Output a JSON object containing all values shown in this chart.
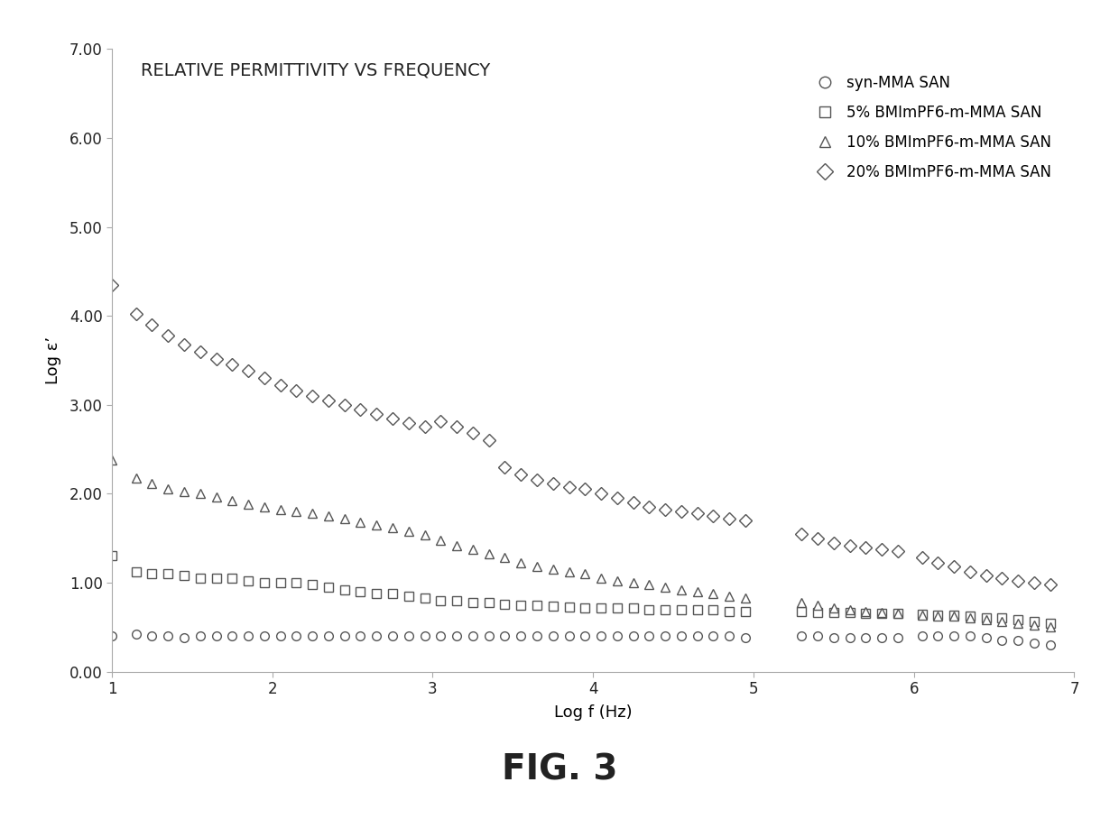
{
  "title": "RELATIVE PERMITTIVITY VS FREQUENCY",
  "xlabel": "Log f (Hz)",
  "ylabel": "Log ε’",
  "xlim": [
    1,
    7
  ],
  "ylim": [
    0.0,
    7.0
  ],
  "xticks": [
    1,
    2,
    3,
    4,
    5,
    6,
    7
  ],
  "yticks": [
    0.0,
    1.0,
    2.0,
    3.0,
    4.0,
    5.0,
    6.0,
    7.0
  ],
  "series": {
    "syn_MMA_SAN": {
      "label": "syn-MMA SAN",
      "marker": "o",
      "x": [
        1.0,
        1.15,
        1.25,
        1.35,
        1.45,
        1.55,
        1.65,
        1.75,
        1.85,
        1.95,
        2.05,
        2.15,
        2.25,
        2.35,
        2.45,
        2.55,
        2.65,
        2.75,
        2.85,
        2.95,
        3.05,
        3.15,
        3.25,
        3.35,
        3.45,
        3.55,
        3.65,
        3.75,
        3.85,
        3.95,
        4.05,
        4.15,
        4.25,
        4.35,
        4.45,
        4.55,
        4.65,
        4.75,
        4.85,
        4.95,
        5.3,
        5.4,
        5.5,
        5.6,
        5.7,
        5.8,
        5.9,
        6.05,
        6.15,
        6.25,
        6.35,
        6.45,
        6.55,
        6.65,
        6.75,
        6.85
      ],
      "y": [
        0.4,
        0.42,
        0.4,
        0.4,
        0.38,
        0.4,
        0.4,
        0.4,
        0.4,
        0.4,
        0.4,
        0.4,
        0.4,
        0.4,
        0.4,
        0.4,
        0.4,
        0.4,
        0.4,
        0.4,
        0.4,
        0.4,
        0.4,
        0.4,
        0.4,
        0.4,
        0.4,
        0.4,
        0.4,
        0.4,
        0.4,
        0.4,
        0.4,
        0.4,
        0.4,
        0.4,
        0.4,
        0.4,
        0.4,
        0.38,
        0.4,
        0.4,
        0.38,
        0.38,
        0.38,
        0.38,
        0.38,
        0.4,
        0.4,
        0.4,
        0.4,
        0.38,
        0.35,
        0.35,
        0.32,
        0.3
      ]
    },
    "pct5_BMImPF6": {
      "label": "5% BMImPF6-m-MMA SAN",
      "marker": "s",
      "x": [
        1.0,
        1.15,
        1.25,
        1.35,
        1.45,
        1.55,
        1.65,
        1.75,
        1.85,
        1.95,
        2.05,
        2.15,
        2.25,
        2.35,
        2.45,
        2.55,
        2.65,
        2.75,
        2.85,
        2.95,
        3.05,
        3.15,
        3.25,
        3.35,
        3.45,
        3.55,
        3.65,
        3.75,
        3.85,
        3.95,
        4.05,
        4.15,
        4.25,
        4.35,
        4.45,
        4.55,
        4.65,
        4.75,
        4.85,
        4.95,
        5.3,
        5.4,
        5.5,
        5.6,
        5.7,
        5.8,
        5.9,
        6.05,
        6.15,
        6.25,
        6.35,
        6.45,
        6.55,
        6.65,
        6.75,
        6.85
      ],
      "y": [
        1.3,
        1.12,
        1.1,
        1.1,
        1.08,
        1.05,
        1.05,
        1.05,
        1.02,
        1.0,
        1.0,
        1.0,
        0.98,
        0.95,
        0.92,
        0.9,
        0.88,
        0.88,
        0.85,
        0.83,
        0.8,
        0.8,
        0.78,
        0.78,
        0.76,
        0.75,
        0.75,
        0.74,
        0.73,
        0.72,
        0.72,
        0.72,
        0.72,
        0.7,
        0.7,
        0.7,
        0.7,
        0.7,
        0.68,
        0.68,
        0.68,
        0.67,
        0.66,
        0.66,
        0.65,
        0.65,
        0.65,
        0.64,
        0.63,
        0.63,
        0.62,
        0.6,
        0.6,
        0.58,
        0.56,
        0.54
      ]
    },
    "pct10_BMImPF6": {
      "label": "10% BMImPF6-m-MMA SAN",
      "marker": "^",
      "x": [
        1.0,
        1.15,
        1.25,
        1.35,
        1.45,
        1.55,
        1.65,
        1.75,
        1.85,
        1.95,
        2.05,
        2.15,
        2.25,
        2.35,
        2.45,
        2.55,
        2.65,
        2.75,
        2.85,
        2.95,
        3.05,
        3.15,
        3.25,
        3.35,
        3.45,
        3.55,
        3.65,
        3.75,
        3.85,
        3.95,
        4.05,
        4.15,
        4.25,
        4.35,
        4.45,
        4.55,
        4.65,
        4.75,
        4.85,
        4.95,
        5.3,
        5.4,
        5.5,
        5.6,
        5.7,
        5.8,
        5.9,
        6.05,
        6.15,
        6.25,
        6.35,
        6.45,
        6.55,
        6.65,
        6.75,
        6.85
      ],
      "y": [
        2.38,
        2.18,
        2.12,
        2.05,
        2.02,
        2.0,
        1.96,
        1.92,
        1.88,
        1.85,
        1.82,
        1.8,
        1.78,
        1.75,
        1.72,
        1.68,
        1.65,
        1.62,
        1.58,
        1.54,
        1.48,
        1.42,
        1.38,
        1.32,
        1.28,
        1.22,
        1.18,
        1.15,
        1.12,
        1.1,
        1.05,
        1.02,
        1.0,
        0.98,
        0.95,
        0.92,
        0.9,
        0.88,
        0.85,
        0.83,
        0.78,
        0.75,
        0.72,
        0.7,
        0.68,
        0.66,
        0.65,
        0.63,
        0.62,
        0.62,
        0.6,
        0.58,
        0.56,
        0.54,
        0.52,
        0.5
      ]
    },
    "pct20_BMImPF6": {
      "label": "20% BMImPF6-m-MMA SAN",
      "marker": "D",
      "x": [
        1.0,
        1.15,
        1.25,
        1.35,
        1.45,
        1.55,
        1.65,
        1.75,
        1.85,
        1.95,
        2.05,
        2.15,
        2.25,
        2.35,
        2.45,
        2.55,
        2.65,
        2.75,
        2.85,
        2.95,
        3.05,
        3.15,
        3.25,
        3.35,
        3.45,
        3.55,
        3.65,
        3.75,
        3.85,
        3.95,
        4.05,
        4.15,
        4.25,
        4.35,
        4.45,
        4.55,
        4.65,
        4.75,
        4.85,
        4.95,
        5.3,
        5.4,
        5.5,
        5.6,
        5.7,
        5.8,
        5.9,
        6.05,
        6.15,
        6.25,
        6.35,
        6.45,
        6.55,
        6.65,
        6.75,
        6.85
      ],
      "y": [
        4.35,
        4.02,
        3.9,
        3.78,
        3.68,
        3.6,
        3.52,
        3.45,
        3.38,
        3.3,
        3.22,
        3.16,
        3.1,
        3.05,
        3.0,
        2.95,
        2.9,
        2.85,
        2.8,
        2.75,
        2.82,
        2.75,
        2.68,
        2.6,
        2.3,
        2.22,
        2.16,
        2.12,
        2.08,
        2.05,
        2.0,
        1.95,
        1.9,
        1.85,
        1.82,
        1.8,
        1.78,
        1.75,
        1.72,
        1.7,
        1.55,
        1.5,
        1.45,
        1.42,
        1.4,
        1.38,
        1.35,
        1.28,
        1.22,
        1.18,
        1.12,
        1.08,
        1.05,
        1.02,
        1.0,
        0.98
      ]
    }
  },
  "fig_label": "FIG. 3",
  "marker_size": 7,
  "marker_facecolor": "white",
  "marker_edgecolor": "#555555",
  "marker_edgewidth": 1.0,
  "background_color": "#ffffff",
  "font_color": "#222222",
  "title_fontsize": 14,
  "axis_label_fontsize": 13,
  "tick_fontsize": 12,
  "legend_fontsize": 12,
  "fig3_fontsize": 28
}
